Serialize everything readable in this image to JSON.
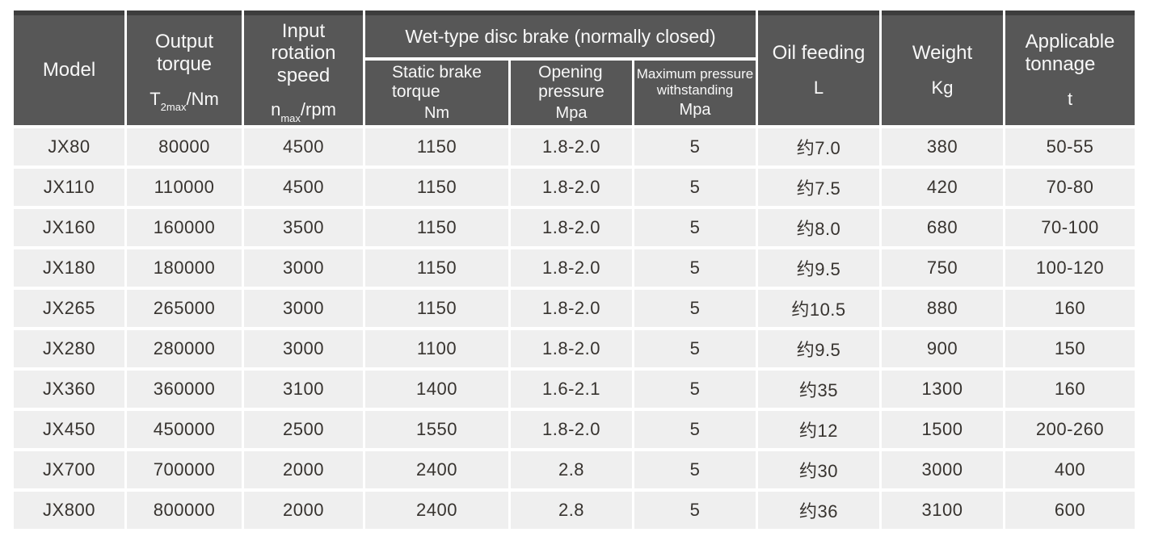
{
  "colors": {
    "header_bg": "#575757",
    "header_strip": "#3d3d3d",
    "header_text": "#f8f8f8",
    "row_bg": "#efefef",
    "cell_text": "#37332f",
    "page_bg": "#ffffff"
  },
  "table": {
    "header": {
      "model": "Model",
      "output_torque": {
        "name": "Output\ntorque",
        "unit_main": "T",
        "unit_sub": "2max",
        "unit_tail": "/Nm"
      },
      "input_speed": {
        "name": "Input\nrotation\nspeed",
        "unit_main": "n",
        "unit_sub": "max",
        "unit_tail": "/rpm"
      },
      "brake_group": "Wet-type disc brake (normally closed)",
      "static_brake": {
        "name": "Static brake\ntorque",
        "unit": "Nm"
      },
      "opening_pressure": {
        "name": "Opening\npressure",
        "unit": "Mpa"
      },
      "max_pressure": {
        "name": "Maximum pressure\nwithstanding",
        "unit": "Mpa"
      },
      "oil_feeding": {
        "name": "Oil feeding",
        "unit": "L"
      },
      "weight": {
        "name": "Weight",
        "unit": "Kg"
      },
      "tonnage": {
        "name": "Applicable\ntonnage",
        "unit": "t"
      }
    },
    "column_names": [
      "model",
      "output-torque",
      "input-rotation-speed",
      "static-brake-torque",
      "opening-pressure",
      "max-pressure-withstanding",
      "oil-feeding",
      "weight",
      "applicable-tonnage"
    ],
    "rows": [
      [
        "JX80",
        "80000",
        "4500",
        "1150",
        "1.8-2.0",
        "5",
        "约7.0",
        "380",
        "50-55"
      ],
      [
        "JX110",
        "110000",
        "4500",
        "1150",
        "1.8-2.0",
        "5",
        "约7.5",
        "420",
        "70-80"
      ],
      [
        "JX160",
        "160000",
        "3500",
        "1150",
        "1.8-2.0",
        "5",
        "约8.0",
        "680",
        "70-100"
      ],
      [
        "JX180",
        "180000",
        "3000",
        "1150",
        "1.8-2.0",
        "5",
        "约9.5",
        "750",
        "100-120"
      ],
      [
        "JX265",
        "265000",
        "3000",
        "1150",
        "1.8-2.0",
        "5",
        "约10.5",
        "880",
        "160"
      ],
      [
        "JX280",
        "280000",
        "3000",
        "1100",
        "1.8-2.0",
        "5",
        "约9.5",
        "900",
        "150"
      ],
      [
        "JX360",
        "360000",
        "3100",
        "1400",
        "1.6-2.1",
        "5",
        "约35",
        "1300",
        "160"
      ],
      [
        "JX450",
        "450000",
        "2500",
        "1550",
        "1.8-2.0",
        "5",
        "约12",
        "1500",
        "200-260"
      ],
      [
        "JX700",
        "700000",
        "2000",
        "2400",
        "2.8",
        "5",
        "约30",
        "3000",
        "400"
      ],
      [
        "JX800",
        "800000",
        "2000",
        "2400",
        "2.8",
        "5",
        "约36",
        "3100",
        "600"
      ]
    ]
  }
}
